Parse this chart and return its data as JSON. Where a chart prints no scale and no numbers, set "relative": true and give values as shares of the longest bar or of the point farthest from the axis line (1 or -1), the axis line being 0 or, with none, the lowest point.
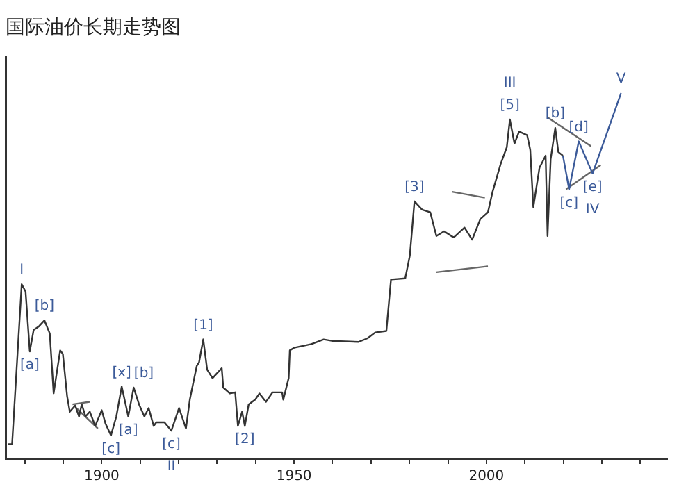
{
  "chart_data": {
    "type": "line",
    "title": "国际油价长期走势图",
    "relative": true,
    "xlim": [
      1875,
      2047
    ],
    "xticks": [
      {
        "value": 1880,
        "label": null
      },
      {
        "value": 1890,
        "label": null
      },
      1900,
      {
        "value": 1910,
        "label": null
      },
      {
        "value": 1920,
        "label": null
      },
      {
        "value": 1930,
        "label": null
      },
      {
        "value": 1940,
        "label": null
      },
      1950,
      {
        "value": 1960,
        "label": null
      },
      {
        "value": 1970,
        "label": null
      },
      {
        "value": 1980,
        "label": null
      },
      {
        "value": 1990,
        "label": null
      },
      2000,
      {
        "value": 2010,
        "label": null
      },
      {
        "value": 2020,
        "label": null
      },
      {
        "value": 2030,
        "label": null
      },
      {
        "value": 2040,
        "label": null
      }
    ],
    "tick_labels": "x",
    "grid": false,
    "legend": false,
    "marker": "none",
    "line_style": "solid",
    "series": [
      {
        "color": "#333333",
        "x": [
          1875.7,
          1876.7,
          1879.2,
          1880.2,
          1881.3,
          1882.3,
          1883.7,
          1885.1,
          1886.5,
          1887.5,
          1889.2,
          1889.9,
          1891.0,
          1891.7,
          1893.1,
          1894.1,
          1894.8,
          1895.8,
          1896.9,
          1898.3,
          1900,
          1901,
          1902.4,
          1903.8,
          1905.2,
          1906.9,
          1908.3,
          1909.7,
          1911.1,
          1912.2,
          1913.5,
          1914.2,
          1916.3,
          1918.1,
          1920.1,
          1921.9,
          1922.9,
          1924.7,
          1925.3,
          1926.4,
          1927.4,
          1928.8,
          1931.2,
          1931.6,
          1933.3,
          1934.7,
          1935.4,
          1936.5,
          1937.2,
          1938.2,
          1939.9,
          1941.0,
          1942.7,
          1944.4,
          1946.9,
          1947.2,
          1948.6,
          1948.9,
          1950,
          1954.5,
          1957.7,
          1959.8,
          1966.7,
          1969.1,
          1971.1,
          1974.0,
          1974.8,
          1975.2,
          1978.9,
          1980.1,
          1981.3,
          1983.3,
          1985.4,
          1987.0,
          1989.0,
          1991.5,
          1994.3,
          1996.3,
          1998.4,
          2000.4,
          2001.6,
          2003.7,
          2005.3,
          2006.1,
          2007.3,
          2008.5,
          2010.6,
          2011.4,
          2012.2,
          2013.8,
          2015.4,
          2015.9,
          2016.7,
          2017.9,
          2018.7,
          2019.9
        ],
        "values": [
          0.039,
          0.039,
          0.477,
          0.457,
          0.293,
          0.352,
          0.362,
          0.378,
          0.342,
          0.178,
          0.296,
          0.286,
          0.171,
          0.128,
          0.145,
          0.115,
          0.148,
          0.115,
          0.128,
          0.089,
          0.132,
          0.095,
          0.063,
          0.115,
          0.197,
          0.115,
          0.194,
          0.148,
          0.115,
          0.138,
          0.089,
          0.099,
          0.099,
          0.076,
          0.138,
          0.082,
          0.161,
          0.253,
          0.263,
          0.326,
          0.243,
          0.22,
          0.247,
          0.194,
          0.178,
          0.181,
          0.089,
          0.128,
          0.089,
          0.148,
          0.161,
          0.178,
          0.155,
          0.181,
          0.181,
          0.161,
          0.22,
          0.296,
          0.303,
          0.313,
          0.326,
          0.322,
          0.319,
          0.329,
          0.345,
          0.349,
          0.444,
          0.49,
          0.493,
          0.556,
          0.704,
          0.681,
          0.674,
          0.609,
          0.622,
          0.605,
          0.632,
          0.599,
          0.655,
          0.674,
          0.73,
          0.806,
          0.852,
          0.928,
          0.862,
          0.895,
          0.885,
          0.845,
          0.688,
          0.796,
          0.829,
          0.609,
          0.819,
          0.905,
          0.839,
          0.829
        ]
      },
      {
        "color": "#3b5a99",
        "x": [
          2019.9,
          2021.5,
          2024.0,
          2027.6,
          2035.0
        ],
        "values": [
          0.829,
          0.737,
          0.868,
          0.78,
          1.0
        ]
      },
      {
        "color": "#666666",
        "x": [
          1892.4,
          1896.9
        ],
        "values": [
          0.148,
          0.155
        ]
      },
      {
        "color": "#666666",
        "x": [
          1893.4,
          1899.0
        ],
        "values": [
          0.138,
          0.082
        ]
      },
      {
        "color": "#666666",
        "x": [
          1991.1,
          1999.6
        ],
        "values": [
          0.73,
          0.714
        ]
      },
      {
        "color": "#666666",
        "x": [
          1987.0,
          2000.4
        ],
        "values": [
          0.51,
          0.526
        ]
      },
      {
        "color": "#666666",
        "x": [
          2015.9,
          2027.2
        ],
        "values": [
          0.934,
          0.855
        ]
      },
      {
        "color": "#666666",
        "x": [
          2020.7,
          2029.7
        ],
        "values": [
          0.737,
          0.803
        ]
      }
    ],
    "annotations": [
      {
        "text": "I",
        "x": 1879.2,
        "y": 0.477
      },
      {
        "text": "[b]",
        "x": 1885.1,
        "y": 0.378
      },
      {
        "text": "[a]",
        "x": 1881.3,
        "y": 0.293
      },
      {
        "text": "[x]",
        "x": 1905.2,
        "y": 0.197
      },
      {
        "text": "[b]",
        "x": 1908.3,
        "y": 0.194
      },
      {
        "text": "[a]",
        "x": 1906.9,
        "y": 0.115
      },
      {
        "text": "[c]",
        "x": 1902.4,
        "y": 0.063
      },
      {
        "text": "[c]",
        "x": 1918.1,
        "y": 0.076
      },
      {
        "text": "II",
        "x": 1918.1,
        "y": 0.076
      },
      {
        "text": "[1]",
        "x": 1926.4,
        "y": 0.326
      },
      {
        "text": "[2]",
        "x": 1937.2,
        "y": 0.089
      },
      {
        "text": "[3]",
        "x": 1981.3,
        "y": 0.704
      },
      {
        "text": "[5]",
        "x": 2006.1,
        "y": 0.928
      },
      {
        "text": "III",
        "x": 2006.1,
        "y": 0.928
      },
      {
        "text": "[b]",
        "x": 2017.9,
        "y": 0.905
      },
      {
        "text": "[d]",
        "x": 2024.0,
        "y": 0.868
      },
      {
        "text": "[c]",
        "x": 2021.5,
        "y": 0.737
      },
      {
        "text": "[e]",
        "x": 2027.6,
        "y": 0.78
      },
      {
        "text": "IV",
        "x": 2027.6,
        "y": 0.78
      },
      {
        "text": "V",
        "x": 2035.0,
        "y": 1.0
      }
    ]
  }
}
